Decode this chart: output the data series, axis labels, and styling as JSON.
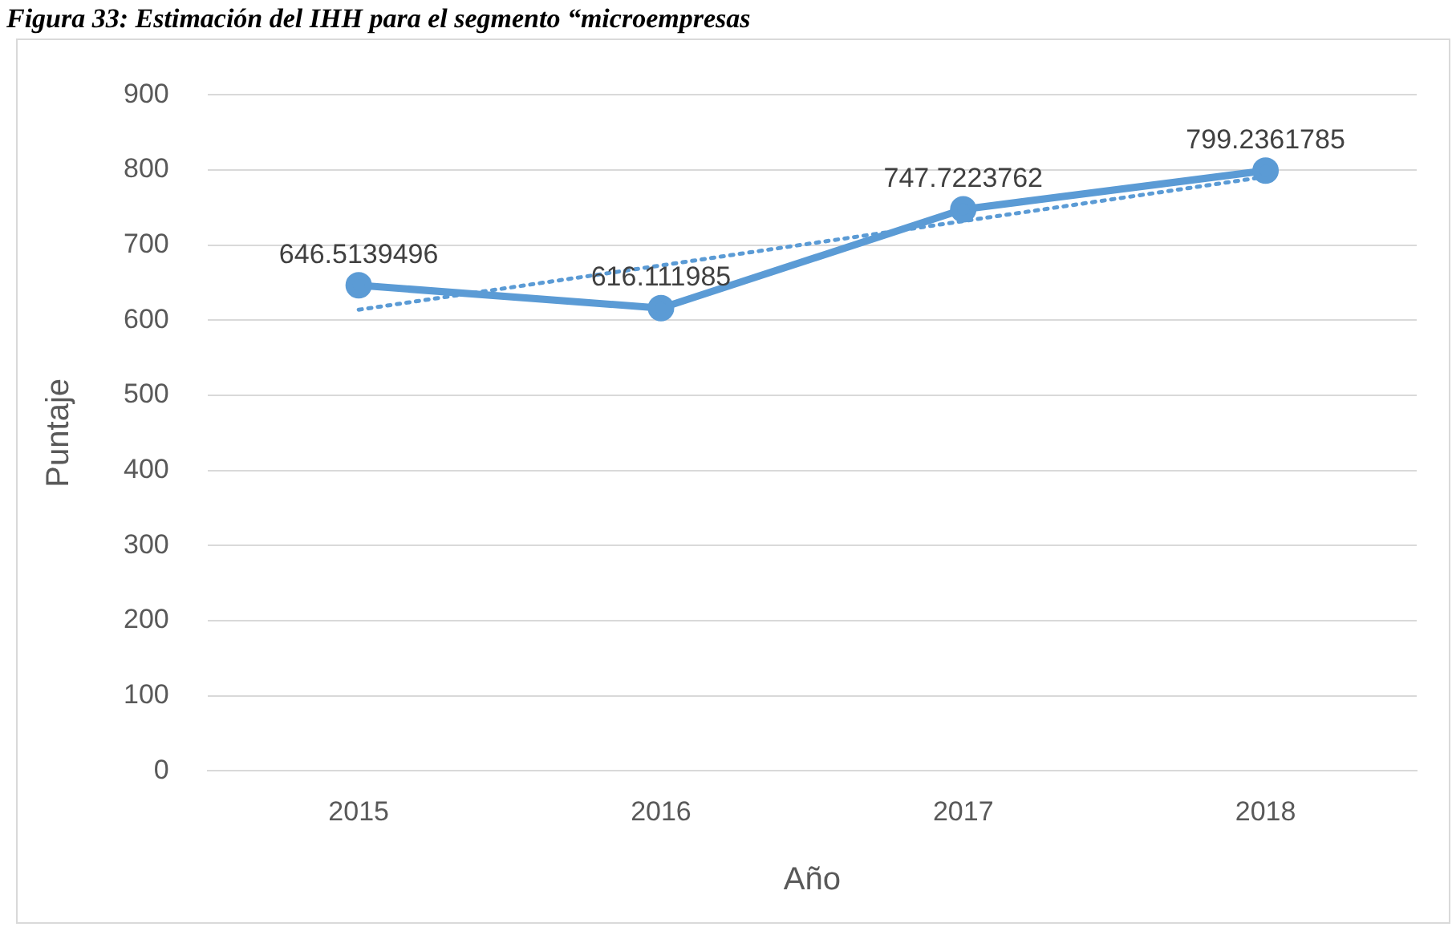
{
  "chart_data": {
    "type": "line",
    "title": "Figura 33: Estimación del IHH para el segmento “microempresas",
    "xlabel": "Año",
    "ylabel": "Puntaje",
    "categories": [
      "2015",
      "2016",
      "2017",
      "2018"
    ],
    "series": [
      {
        "color": "#5b9bd5",
        "values": [
          646.5139496,
          616.111985,
          747.7223762,
          799.2361785
        ],
        "value_labels": [
          "646.5139496",
          "616.111985",
          "747.7223762",
          "799.2361785"
        ],
        "marker": "circle",
        "line_style": "solid"
      },
      {
        "type": "line",
        "color": "#5b9bd5",
        "values": [
          614,
          673,
          732,
          791
        ],
        "marker": "none",
        "line_style": "dotted"
      }
    ],
    "ylim": [
      0,
      900
    ],
    "yticks": [
      0,
      100,
      200,
      300,
      400,
      500,
      600,
      700,
      800,
      900
    ],
    "grid": "y",
    "legend": false
  }
}
